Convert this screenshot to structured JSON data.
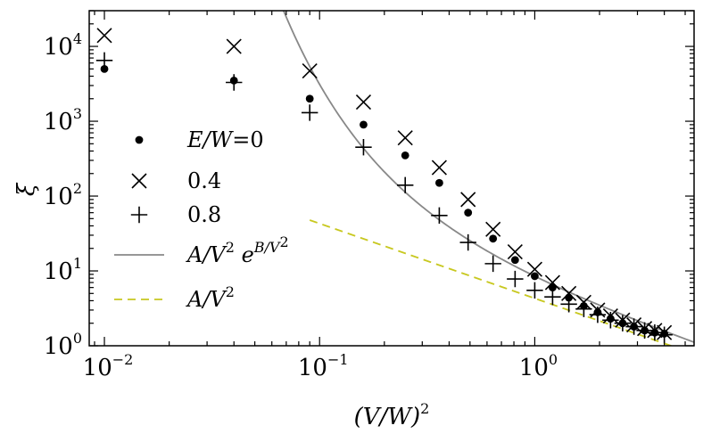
{
  "chart_data": {
    "type": "scatter",
    "x_scale": "log",
    "y_scale": "log",
    "xlim": [
      0.0085,
      5.5
    ],
    "ylim": [
      1,
      30000
    ],
    "xlabel": "(V/W)²",
    "ylabel": "ξ",
    "x_ticks": [
      {
        "value": 0.01,
        "base": "10",
        "exp": "−2"
      },
      {
        "value": 0.1,
        "base": "10",
        "exp": "−1"
      },
      {
        "value": 1,
        "base": "10",
        "exp": "0"
      }
    ],
    "y_ticks": [
      {
        "value": 1,
        "base": "10",
        "exp": "0"
      },
      {
        "value": 10,
        "base": "10",
        "exp": "1"
      },
      {
        "value": 100,
        "base": "10",
        "exp": "2"
      },
      {
        "value": 1000,
        "base": "10",
        "exp": "3"
      },
      {
        "value": 10000,
        "base": "10",
        "exp": "4"
      }
    ],
    "series": [
      {
        "name": "E/W=0",
        "label_italic": "E/W",
        "label_rest": "=0",
        "marker": "dot",
        "color": "#000000",
        "x": [
          0.01,
          0.04,
          0.09,
          0.16,
          0.25,
          0.36,
          0.49,
          0.64,
          0.81,
          1.0,
          1.21,
          1.44,
          1.69,
          1.96,
          2.25,
          2.56,
          2.89,
          3.24,
          3.61,
          4.0
        ],
        "y": [
          5000,
          3500,
          2000,
          900,
          350,
          150,
          60,
          27,
          14,
          8.5,
          6,
          4.4,
          3.4,
          2.8,
          2.3,
          2.0,
          1.8,
          1.6,
          1.5,
          1.45
        ]
      },
      {
        "name": "0.4",
        "marker": "x",
        "color": "#000000",
        "x": [
          0.01,
          0.04,
          0.09,
          0.16,
          0.25,
          0.36,
          0.49,
          0.64,
          0.81,
          1.0,
          1.21,
          1.44,
          1.69,
          1.96,
          2.25,
          2.56,
          2.89,
          3.24,
          3.61,
          4.0
        ],
        "y": [
          14000,
          10000,
          4700,
          1800,
          600,
          240,
          90,
          36,
          18,
          10.5,
          7,
          5,
          3.8,
          3.0,
          2.5,
          2.2,
          1.9,
          1.7,
          1.6,
          1.5
        ]
      },
      {
        "name": "0.8",
        "marker": "plus",
        "color": "#000000",
        "x": [
          0.01,
          0.04,
          0.09,
          0.16,
          0.25,
          0.36,
          0.49,
          0.64,
          0.81,
          1.0,
          1.21,
          1.44,
          1.69,
          1.96,
          2.25,
          2.56,
          2.89,
          3.24,
          3.61,
          4.0
        ],
        "y": [
          6500,
          3300,
          1300,
          450,
          140,
          55,
          24,
          12.5,
          7.8,
          5.5,
          4.5,
          3.6,
          3.1,
          2.6,
          2.2,
          2.0,
          1.8,
          1.6,
          1.5,
          1.4
        ]
      }
    ],
    "curves": [
      {
        "name": "A/V² e^{B/V²}",
        "label_base": "A/V",
        "label_sup1": "2",
        "label_e": " e",
        "label_sup2": "B/V",
        "label_sup3": "2",
        "style": "solid",
        "color": "#888888",
        "A": 5.7,
        "B": 0.4
      },
      {
        "name": "A/V²",
        "label_base": "A/V",
        "label_sup1": "2",
        "style": "dashed",
        "color": "#c8c820",
        "A": 4.3,
        "x_start": 0.09
      }
    ],
    "legend_position": "center-left"
  }
}
